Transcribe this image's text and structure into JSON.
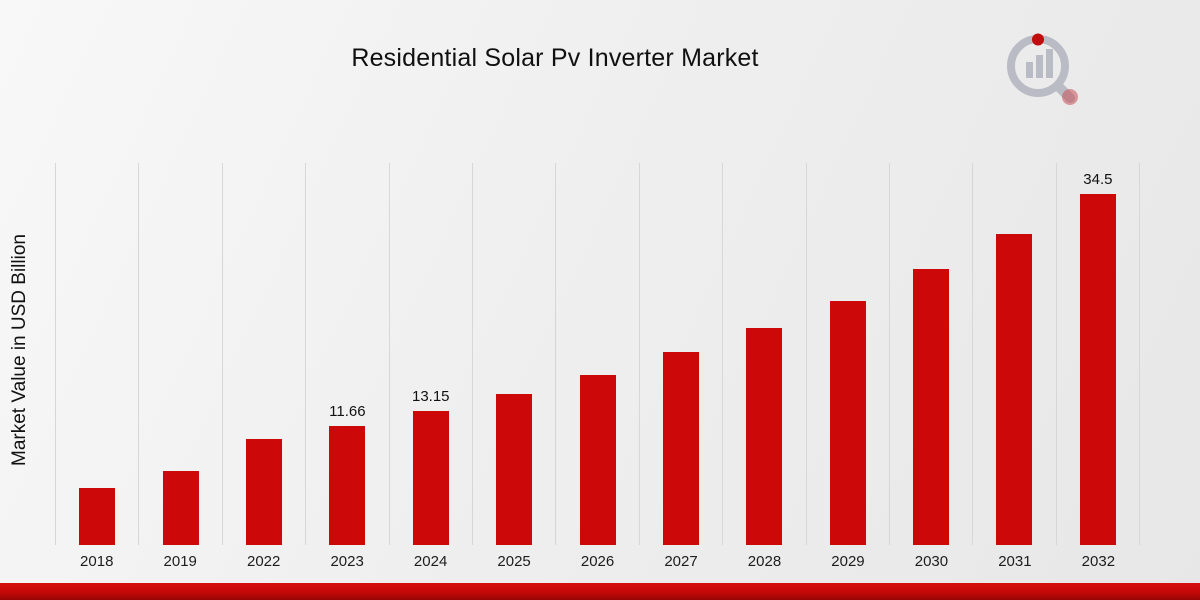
{
  "title": "Residential Solar Pv Inverter Market",
  "ylabel": "Market Value in USD Billion",
  "icons": {
    "brand_logo": "bar-chart-magnifier-logo"
  },
  "colors": {
    "bar": "#cc0808",
    "footer_band": "#c40808",
    "gridline": "#d7d7d7",
    "logo_gray": "#b9bcc4",
    "logo_red": "#c00c0c"
  },
  "chart_data": {
    "type": "bar",
    "title": "Residential Solar Pv Inverter Market",
    "xlabel": "",
    "ylabel": "Market Value in USD Billion",
    "categories": [
      "2018",
      "2019",
      "2022",
      "2023",
      "2024",
      "2025",
      "2026",
      "2027",
      "2028",
      "2029",
      "2030",
      "2031",
      "2032"
    ],
    "values": [
      5.6,
      7.25,
      10.4,
      11.66,
      13.15,
      14.8,
      16.7,
      18.9,
      21.3,
      24.0,
      27.1,
      30.5,
      34.5
    ],
    "data_labels": [
      null,
      null,
      null,
      "11.66",
      "13.15",
      null,
      null,
      null,
      null,
      null,
      null,
      null,
      "34.5"
    ],
    "ylim": [
      0,
      37.5
    ],
    "grid": "vertical-only",
    "legend": "none",
    "bar_color": "#cc0808"
  }
}
